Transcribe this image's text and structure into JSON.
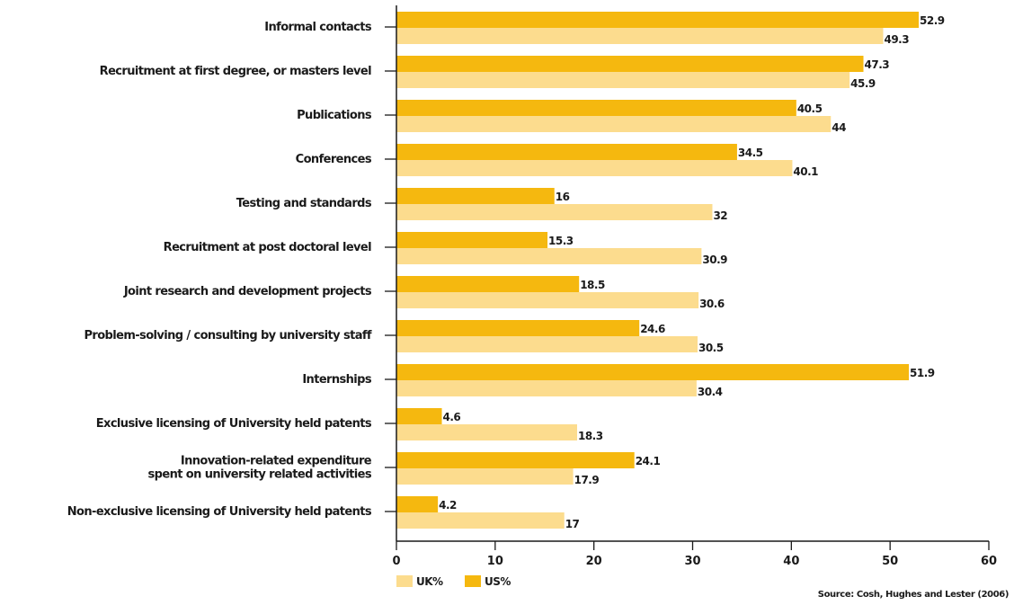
{
  "chart_data": {
    "type": "bar",
    "orientation": "horizontal",
    "categories": [
      [
        "Informal contacts"
      ],
      [
        "Recruitment  at first degree, or masters level"
      ],
      [
        "Publications"
      ],
      [
        "Conferences"
      ],
      [
        "Testing and standards"
      ],
      [
        "Recruitment at post doctoral level"
      ],
      [
        "Joint research and development projects"
      ],
      [
        "Problem-solving / consulting by university staff"
      ],
      [
        "Internships"
      ],
      [
        "Exclusive licensing of University held patents"
      ],
      [
        "Innovation-related expenditure",
        "spent on university related activities"
      ],
      [
        "Non-exclusive licensing of University held patents"
      ]
    ],
    "series": [
      {
        "name": "US%",
        "color": "#F5B80F",
        "values": [
          52.9,
          47.3,
          40.5,
          34.5,
          16,
          15.3,
          18.5,
          24.6,
          51.9,
          4.6,
          24.1,
          4.2
        ],
        "labels": [
          "52.9",
          "47.3",
          "40.5",
          "34.5",
          "16",
          "15.3",
          "18.5",
          "24.6",
          "51.9",
          "4.6",
          "24.1",
          "4.2"
        ]
      },
      {
        "name": "UK%",
        "color": "#FCDC8E",
        "values": [
          49.3,
          45.9,
          44,
          40.1,
          32,
          30.9,
          30.6,
          30.5,
          30.4,
          18.3,
          17.9,
          17
        ],
        "labels": [
          "49.3",
          "45.9",
          "44",
          "40.1",
          "32",
          "30.9",
          "30.6",
          "30.5",
          "30.4",
          "18.3",
          "17.9",
          "17"
        ]
      }
    ],
    "xlim": [
      0,
      60
    ],
    "xticks": [
      "0",
      "10",
      "20",
      "30",
      "40",
      "50",
      "60"
    ],
    "legend_order": [
      "UK%",
      "US%"
    ],
    "legend_position": "bottom-left",
    "grid": false,
    "source": "Source: Cosh, Hughes and Lester (2006)"
  }
}
